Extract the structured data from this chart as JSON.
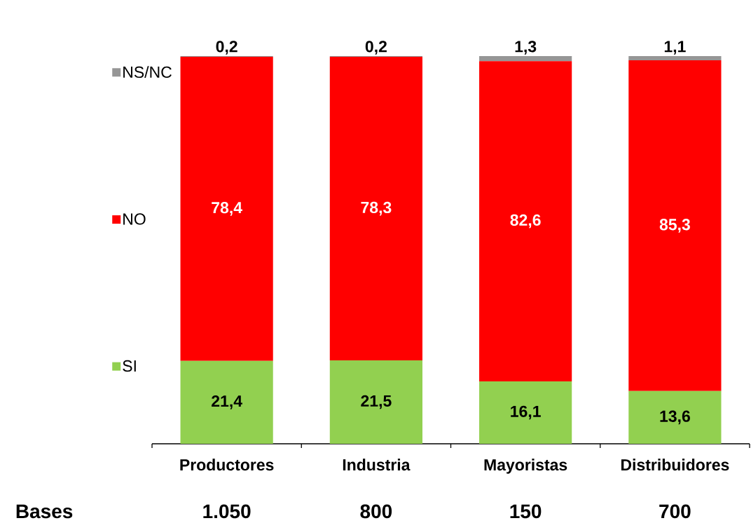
{
  "chart_data": {
    "type": "bar",
    "stacked": true,
    "categories": [
      "Productores",
      "Industria",
      "Mayoristas",
      "Distribuidores"
    ],
    "series": [
      {
        "name": "SI",
        "color": "#92d050",
        "values": [
          21.4,
          21.5,
          16.1,
          13.6
        ],
        "value_labels": [
          "21,4",
          "21,5",
          "16,1",
          "13,6"
        ]
      },
      {
        "name": "NO",
        "color": "#ff0000",
        "values": [
          78.4,
          78.3,
          82.6,
          85.3
        ],
        "value_labels": [
          "78,4",
          "78,3",
          "82,6",
          "85,3"
        ]
      },
      {
        "name": "NS/NC",
        "color": "#969696",
        "values": [
          0.2,
          0.2,
          1.3,
          1.1
        ],
        "value_labels": [
          "0,2",
          "0,2",
          "1,3",
          "1,1"
        ]
      }
    ],
    "ylim": [
      0,
      100
    ],
    "tick_labels": "x",
    "legend": "left",
    "annotations": [
      "Bases",
      "1.050",
      "800",
      "150",
      "700"
    ]
  }
}
